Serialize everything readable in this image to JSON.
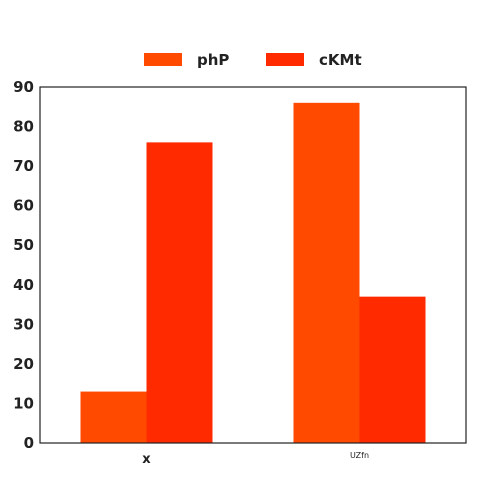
{
  "chart_data": {
    "type": "bar",
    "categories": [
      "x",
      "UZfn"
    ],
    "series": [
      {
        "name": "phP",
        "values": [
          13,
          86
        ],
        "color": "#ff4a00"
      },
      {
        "name": "cKMt",
        "values": [
          76,
          37
        ],
        "color": "#ff2a00"
      }
    ],
    "ylim": [
      0,
      90
    ],
    "yticks": [
      0,
      10,
      20,
      30,
      40,
      50,
      60,
      70,
      80,
      90
    ],
    "legend_position": "top-center",
    "grid": false
  }
}
